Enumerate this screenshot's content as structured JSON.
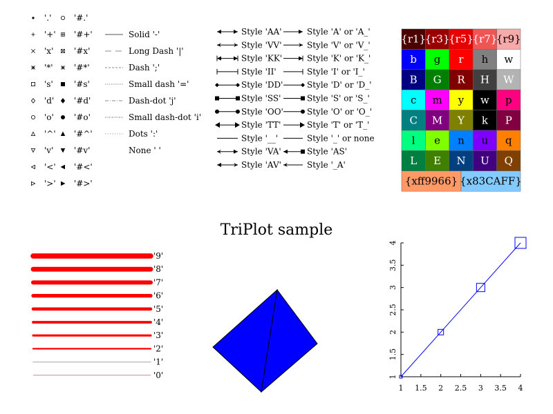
{
  "title": "TriPlot sample",
  "markers": {
    "rows": [
      {
        "symbol": "point",
        "label": "'.'",
        "hash_label": "'#.'"
      },
      {
        "symbol": "plus",
        "label": "'+'",
        "hash_label": "'#+'"
      },
      {
        "symbol": "x",
        "label": "'x'",
        "hash_label": "'#x'"
      },
      {
        "symbol": "star",
        "label": "'*'",
        "hash_label": "'#*'"
      },
      {
        "symbol": "square",
        "label": "'s'",
        "hash_label": "'#s'"
      },
      {
        "symbol": "diamond",
        "label": "'d'",
        "hash_label": "'#d'"
      },
      {
        "symbol": "circle",
        "label": "'o'",
        "hash_label": "'#o'"
      },
      {
        "symbol": "triangle-up",
        "label": "'^'",
        "hash_label": "'#^'"
      },
      {
        "symbol": "triangle-down",
        "label": "'v'",
        "hash_label": "'#v'"
      },
      {
        "symbol": "triangle-left",
        "label": "'<'",
        "hash_label": "'#<'"
      },
      {
        "symbol": "triangle-right",
        "label": "'>'",
        "hash_label": "'#>'"
      }
    ]
  },
  "dashes": [
    {
      "style": "solid",
      "label": "Solid '-'"
    },
    {
      "style": "longdash",
      "label": "Long Dash '|'"
    },
    {
      "style": "dash",
      "label": "Dash ';'"
    },
    {
      "style": "smalldash",
      "label": "Small dash '='"
    },
    {
      "style": "dashdot",
      "label": "Dash-dot 'j'"
    },
    {
      "style": "smalldashdot",
      "label": "Small dash-dot 'i'"
    },
    {
      "style": "dots",
      "label": "Dots ':'"
    },
    {
      "style": "none",
      "label": "None ' '"
    }
  ],
  "arrows": {
    "left": [
      {
        "start": "open",
        "end": "open",
        "label": "Style 'AA'"
      },
      {
        "start": "v",
        "end": "v",
        "label": "Style 'VV'"
      },
      {
        "start": "bar-arrow",
        "end": "bar-arrow",
        "label": "Style 'KK'"
      },
      {
        "start": "bar",
        "end": "bar",
        "label": "Style 'II'"
      },
      {
        "start": "diamond",
        "end": "diamond",
        "label": "Style 'DD'"
      },
      {
        "start": "square",
        "end": "square",
        "label": "Style 'SS'"
      },
      {
        "start": "circle",
        "end": "circle",
        "label": "Style 'OO'"
      },
      {
        "start": "tri",
        "end": "tri",
        "label": "Style 'TT'"
      },
      {
        "start": "none",
        "end": "none",
        "label": "Style '__'"
      },
      {
        "start": "v",
        "end": "open",
        "label": "Style 'VA'"
      },
      {
        "start": "open",
        "end": "v",
        "label": "Style 'AV'"
      }
    ],
    "right": [
      {
        "end": "open",
        "label": "Style 'A' or 'A_'"
      },
      {
        "end": "v",
        "label": "Style 'V' or 'V_'"
      },
      {
        "end": "bar-arrow",
        "label": "Style 'K' or 'K_'"
      },
      {
        "end": "bar",
        "label": "Style 'I' or 'I_'"
      },
      {
        "end": "diamond",
        "label": "Style 'D' or 'D_'"
      },
      {
        "end": "square",
        "label": "Style 'S' or 'S_'"
      },
      {
        "end": "circle",
        "label": "Style 'O' or 'O_'"
      },
      {
        "end": "tri",
        "label": "Style 'T' or 'T_'"
      },
      {
        "end": "none",
        "label": "Style '_' or none"
      },
      {
        "start": "open",
        "end": "square",
        "label": "Style 'AS'"
      },
      {
        "start": "v",
        "end": "none",
        "label": "Style '_A'"
      }
    ]
  },
  "colors": {
    "top_row": [
      {
        "label": "{r1}",
        "color": "#4d0000"
      },
      {
        "label": "{r3}",
        "color": "#990000"
      },
      {
        "label": "{r5}",
        "color": "#e60000"
      },
      {
        "label": "{r7}",
        "color": "#f05555"
      },
      {
        "label": "{r9}",
        "color": "#f7aaaa",
        "text_color": "#000000"
      }
    ],
    "grid": [
      [
        {
          "label": "b",
          "color": "#0000ff"
        },
        {
          "label": "g",
          "color": "#00ff00",
          "text_color": "#000000"
        },
        {
          "label": "r",
          "color": "#ff0000"
        },
        {
          "label": "h",
          "color": "#808080",
          "text_color": "#000000"
        },
        {
          "label": "w",
          "color": "#ffffff",
          "text_color": "#000000"
        }
      ],
      [
        {
          "label": "B",
          "color": "#000080"
        },
        {
          "label": "G",
          "color": "#007f00"
        },
        {
          "label": "R",
          "color": "#800000"
        },
        {
          "label": "H",
          "color": "#404040"
        },
        {
          "label": "W",
          "color": "#b3b3b3"
        }
      ],
      [
        {
          "label": "c",
          "color": "#00ffff",
          "text_color": "#000000"
        },
        {
          "label": "m",
          "color": "#ff00ff",
          "text_color": "#000000"
        },
        {
          "label": "y",
          "color": "#ffff00",
          "text_color": "#000000"
        },
        {
          "label": "w",
          "color": "#000000"
        },
        {
          "label": "p",
          "color": "#ff0080",
          "text_color": "#000000"
        }
      ],
      [
        {
          "label": "C",
          "color": "#008080"
        },
        {
          "label": "M",
          "color": "#800080"
        },
        {
          "label": "Y",
          "color": "#808000"
        },
        {
          "label": "k",
          "color": "#000000"
        },
        {
          "label": "P",
          "color": "#800040"
        }
      ],
      [
        {
          "label": "l",
          "color": "#00ff80",
          "text_color": "#000000"
        },
        {
          "label": "e",
          "color": "#80ff00",
          "text_color": "#000000"
        },
        {
          "label": "n",
          "color": "#0080ff",
          "text_color": "#000000"
        },
        {
          "label": "u",
          "color": "#8000ff",
          "text_color": "#000000"
        },
        {
          "label": "q",
          "color": "#ff8000",
          "text_color": "#000000"
        }
      ],
      [
        {
          "label": "L",
          "color": "#008040"
        },
        {
          "label": "E",
          "color": "#408000"
        },
        {
          "label": "N",
          "color": "#004080"
        },
        {
          "label": "U",
          "color": "#400080"
        },
        {
          "label": "Q",
          "color": "#804000"
        }
      ]
    ],
    "bottom_row": [
      {
        "label": "{xff9966}",
        "color": "#ff9966",
        "text_color": "#000000"
      },
      {
        "label": "{x83CAFF}",
        "color": "#83caff",
        "text_color": "#000000"
      }
    ]
  },
  "widths": [
    {
      "label": "'9'",
      "color": "#ff0000"
    },
    {
      "label": "'8'",
      "color": "#ff0000"
    },
    {
      "label": "'7'",
      "color": "#ff0000"
    },
    {
      "label": "'6'",
      "color": "#ff0000"
    },
    {
      "label": "'5'",
      "color": "#ff0000"
    },
    {
      "label": "'4'",
      "color": "#ff0000"
    },
    {
      "label": "'3'",
      "color": "#ff0000"
    },
    {
      "label": "'2'",
      "color": "#ff0000"
    },
    {
      "label": "'1'",
      "color": "#c0c0c0"
    },
    {
      "label": "'0'",
      "color": "#b08080"
    }
  ],
  "triangles": {
    "fill": "#0000ff",
    "stroke": "#000000"
  },
  "chart_data": {
    "type": "line",
    "title": "",
    "xlabel": "",
    "ylabel": "",
    "x": [
      1,
      2,
      3,
      4
    ],
    "series": [
      {
        "values": [
          1,
          2,
          3,
          4
        ],
        "color": "#0000ff",
        "marker": "square"
      }
    ],
    "xlim": [
      1,
      4
    ],
    "ylim": [
      1,
      4
    ],
    "xticks": [
      "1",
      "1.5",
      "2",
      "2.5",
      "3",
      "3.5",
      "4"
    ],
    "yticks": [
      "1",
      "1.5",
      "2",
      "2.5",
      "3",
      "3.5",
      "4"
    ],
    "grid": false
  }
}
